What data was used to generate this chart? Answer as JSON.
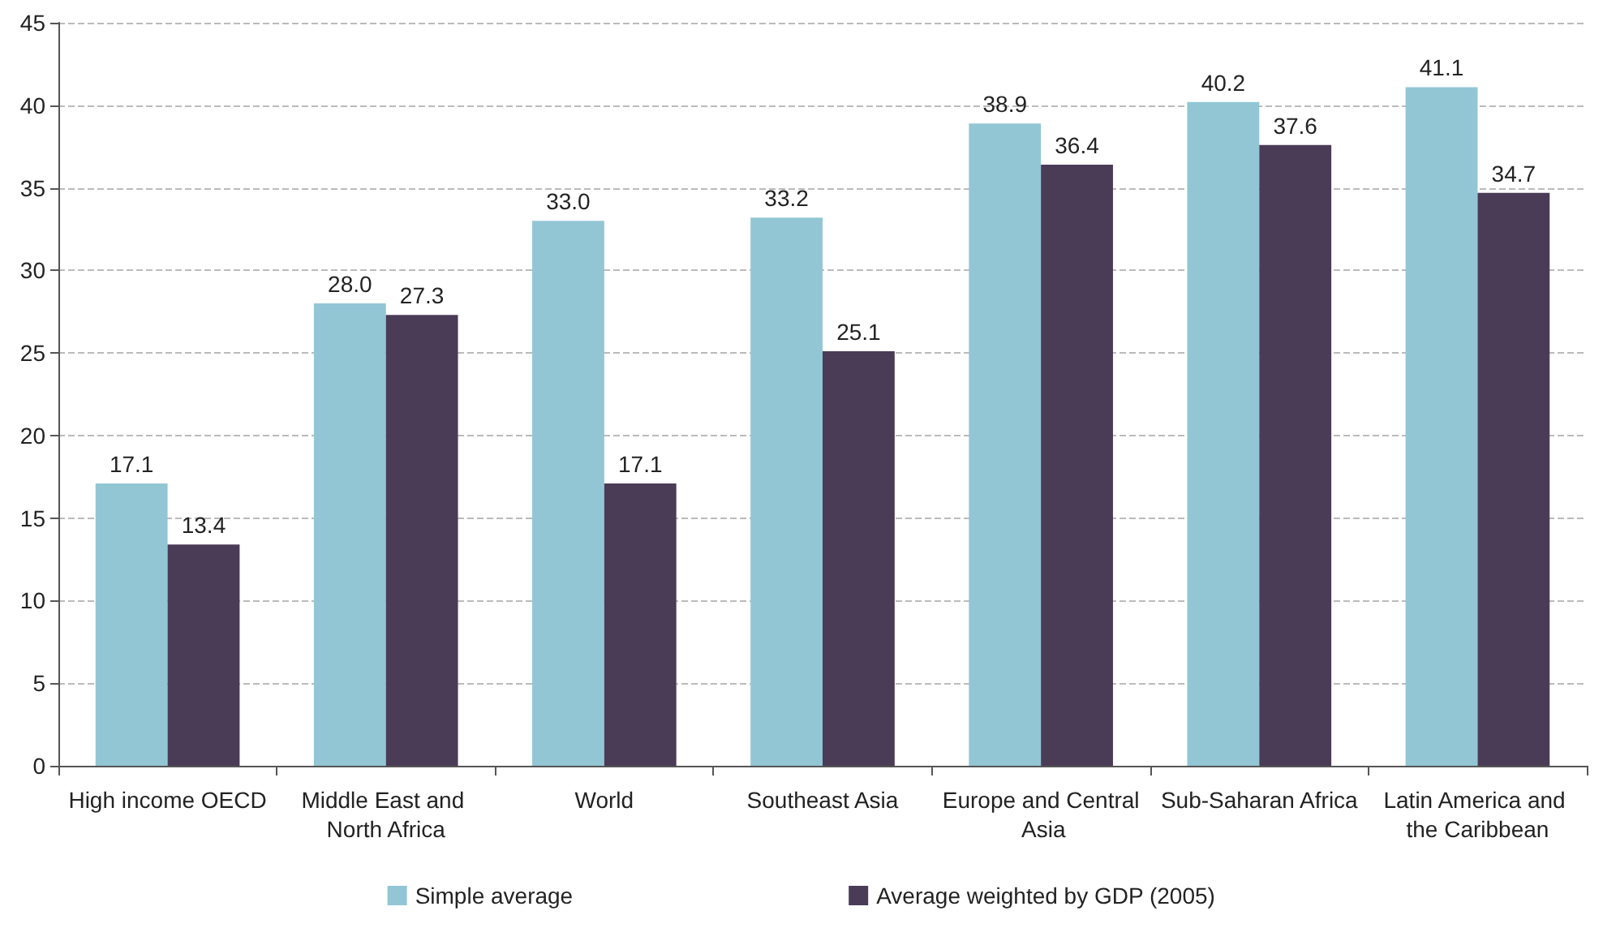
{
  "chart_data": {
    "type": "bar",
    "categories": [
      "High income OECD",
      "Middle East and North Africa",
      "World",
      "Southeast Asia",
      "Europe and Central Asia",
      "Sub-Saharan Africa",
      "Latin America and the Caribbean"
    ],
    "series": [
      {
        "name": "Simple average",
        "color": "#92c6d4",
        "values": [
          17.1,
          28.0,
          33.0,
          33.2,
          38.9,
          40.2,
          41.1
        ],
        "value_labels": [
          "17.1",
          "28.0",
          "33.0",
          "33.2",
          "38.9",
          "40.2",
          "41.1"
        ]
      },
      {
        "name": "Average weighted by GDP (2005)",
        "color": "#4a3b56",
        "values": [
          13.4,
          27.3,
          17.1,
          25.1,
          36.4,
          37.6,
          34.7
        ],
        "value_labels": [
          "13.4",
          "27.3",
          "17.1",
          "25.1",
          "36.4",
          "37.6",
          "34.7"
        ]
      }
    ],
    "ylim": [
      0,
      45
    ],
    "yticks": [
      0,
      5,
      10,
      15,
      20,
      25,
      30,
      35,
      40,
      45
    ],
    "grid": "y",
    "legend": "bottom"
  }
}
